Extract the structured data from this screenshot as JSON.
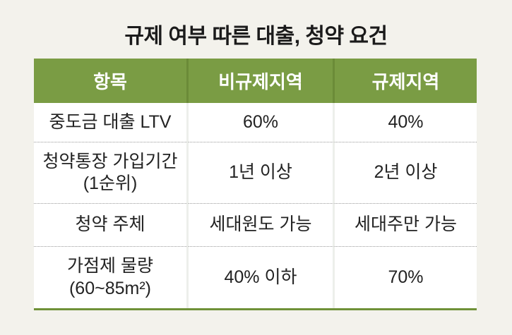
{
  "title": "규제 여부 따른 대출, 청약 요건",
  "table": {
    "columns": [
      "항목",
      "비규제지역",
      "규제지역"
    ],
    "rows": [
      {
        "item_line1": "중도금 대출 LTV",
        "item_line2": "",
        "non_regulated": "60%",
        "regulated": "40%"
      },
      {
        "item_line1": "청약통장 가입기간",
        "item_line2": "(1순위)",
        "non_regulated": "1년 이상",
        "regulated": "2년 이상"
      },
      {
        "item_line1": "청약 주체",
        "item_line2": "",
        "non_regulated": "세대원도 가능",
        "regulated": "세대주만 가능"
      },
      {
        "item_line1": "가점제 물량",
        "item_line2": "(60~85m²)",
        "non_regulated": "40% 이하",
        "regulated": "70%"
      }
    ]
  },
  "colors": {
    "background": "#f3f2ec",
    "header_green": "#7a9c44",
    "header_divider_green": "#6b8b38",
    "bottom_border_green": "#6f9138",
    "body_divider": "#edefeb",
    "dotted_separator": "#9a9a9a",
    "title_text": "#1b1b1b",
    "body_text": "#222222"
  },
  "chart_data": {
    "type": "table",
    "title": "규제 여부 따른 대출, 청약 요건",
    "columns": [
      "항목",
      "비규제지역",
      "규제지역"
    ],
    "rows": [
      [
        "중도금 대출 LTV",
        "60%",
        "40%"
      ],
      [
        "청약통장 가입기간 (1순위)",
        "1년 이상",
        "2년 이상"
      ],
      [
        "청약 주체",
        "세대원도 가능",
        "세대주만 가능"
      ],
      [
        "가점제 물량 (60~85m²)",
        "40% 이하",
        "70%"
      ]
    ]
  }
}
